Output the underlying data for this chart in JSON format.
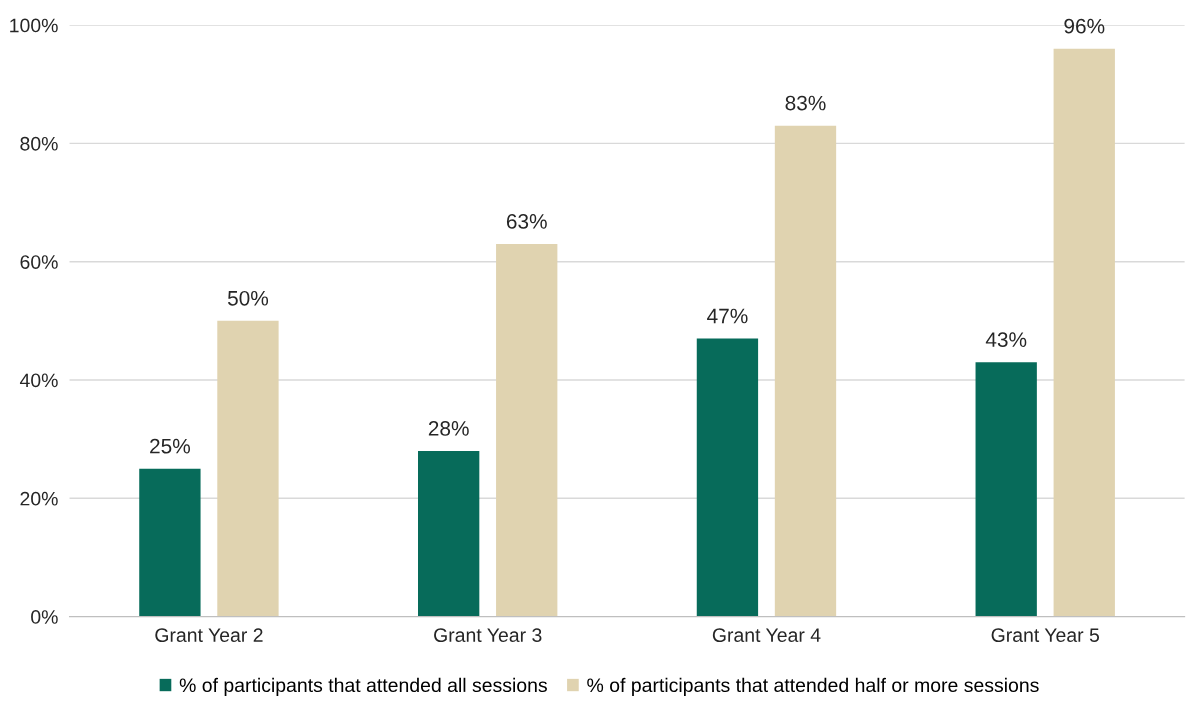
{
  "chart_data": {
    "type": "bar",
    "categories": [
      "Grant Year 2",
      "Grant Year 3",
      "Grant Year 4",
      "Grant Year 5"
    ],
    "series": [
      {
        "name": "% of participants that attended all sessions",
        "color": "#076b5a",
        "values": [
          25,
          28,
          47,
          43
        ],
        "value_labels": [
          "25%",
          "28%",
          "47%",
          "43%"
        ]
      },
      {
        "name": "% of participants that attended half or more sessions",
        "color": "#e0d3b0",
        "values": [
          50,
          63,
          83,
          96
        ],
        "value_labels": [
          "50%",
          "63%",
          "83%",
          "96%"
        ]
      }
    ],
    "ylim": [
      0,
      100
    ],
    "yticks": [
      {
        "value": 0,
        "label": "0%"
      },
      {
        "value": 20,
        "label": "20%"
      },
      {
        "value": 40,
        "label": "40%"
      },
      {
        "value": 60,
        "label": "60%"
      },
      {
        "value": 80,
        "label": "80%"
      },
      {
        "value": 100,
        "label": "100%"
      }
    ],
    "grid": "y",
    "legend": "bottom"
  }
}
